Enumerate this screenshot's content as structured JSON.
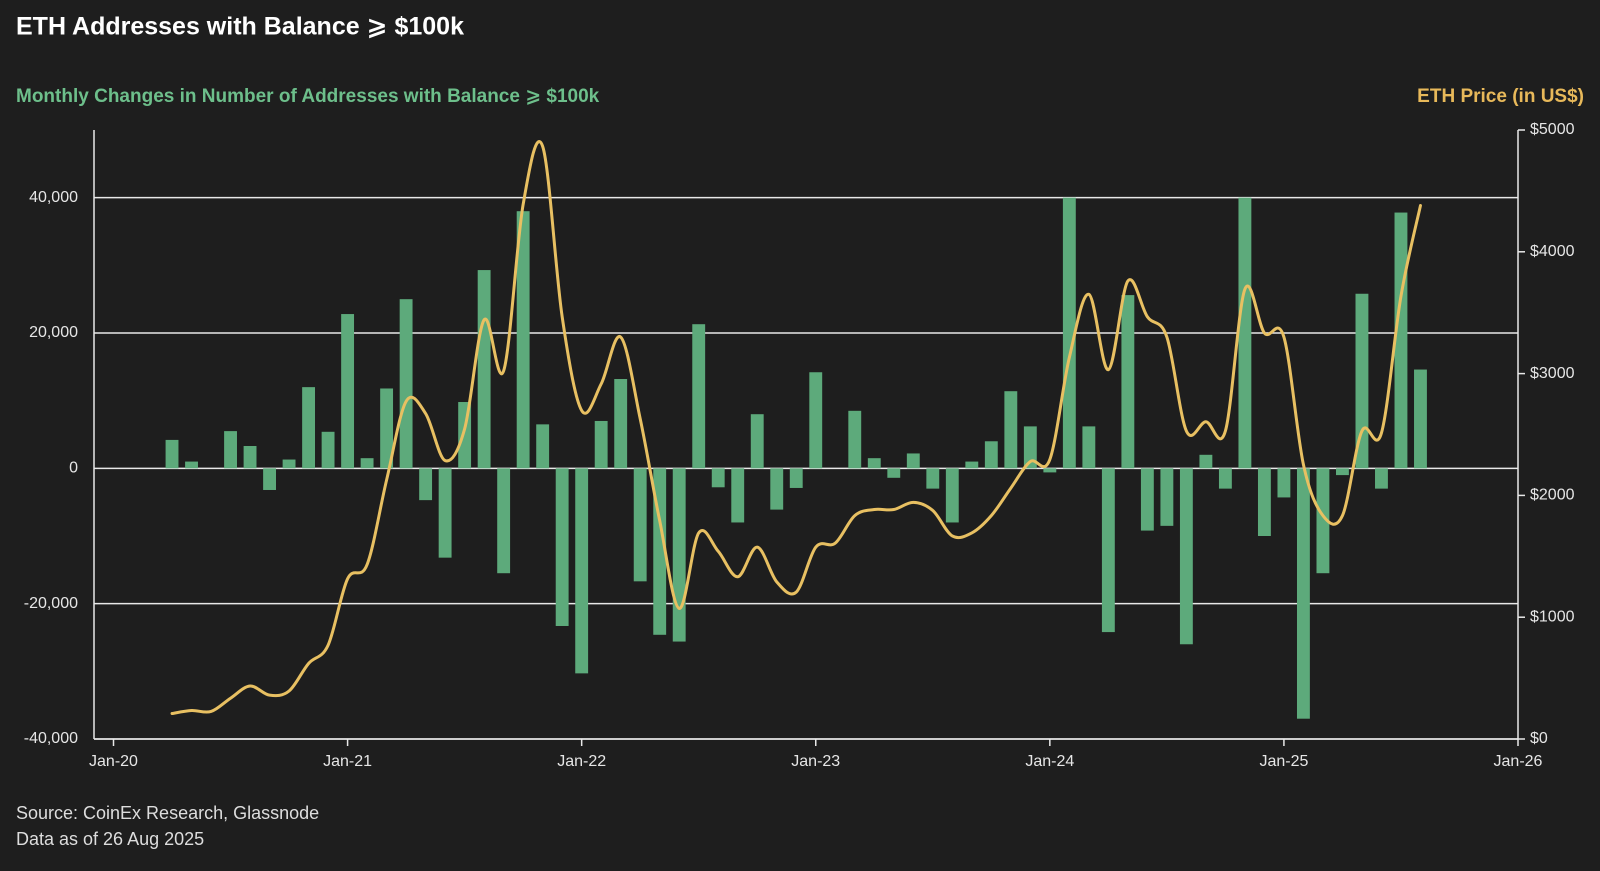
{
  "chart_data": {
    "type": "combo",
    "title": "ETH Addresses with Balance ⩾ $100k",
    "y_label": "Monthly Changes in Number of Addresses with Balance ⩾ $100k",
    "y2_label": "ETH Price (in US$)",
    "source": "Source: CoinEx Research, Glassnode",
    "note": "Data as of 26 Aug 2025",
    "x": [
      "2020-04",
      "2020-05",
      "2020-06",
      "2020-07",
      "2020-08",
      "2020-09",
      "2020-10",
      "2020-11",
      "2020-12",
      "2021-01",
      "2021-02",
      "2021-03",
      "2021-04",
      "2021-05",
      "2021-06",
      "2021-07",
      "2021-08",
      "2021-09",
      "2021-10",
      "2021-11",
      "2021-12",
      "2022-01",
      "2022-02",
      "2022-03",
      "2022-04",
      "2022-05",
      "2022-06",
      "2022-07",
      "2022-08",
      "2022-09",
      "2022-10",
      "2022-11",
      "2022-12",
      "2023-01",
      "2023-02",
      "2023-03",
      "2023-04",
      "2023-05",
      "2023-06",
      "2023-07",
      "2023-08",
      "2023-09",
      "2023-10",
      "2023-11",
      "2023-12",
      "2024-01",
      "2024-02",
      "2024-03",
      "2024-04",
      "2024-05",
      "2024-06",
      "2024-07",
      "2024-08",
      "2024-09",
      "2024-10",
      "2024-11",
      "2024-12",
      "2025-01",
      "2025-02",
      "2025-03",
      "2025-04",
      "2025-05",
      "2025-06",
      "2025-07",
      "2025-08"
    ],
    "series": [
      {
        "type": "bar",
        "axis": "y",
        "color": "#5daa7b",
        "values": [
          4200,
          1000,
          0,
          5500,
          3300,
          -3200,
          1300,
          12000,
          5400,
          22800,
          1500,
          11800,
          25000,
          -4700,
          -13200,
          9800,
          29300,
          -15500,
          38000,
          6500,
          -23300,
          -30300,
          7000,
          13200,
          -16700,
          -24600,
          -25600,
          21300,
          -2800,
          -8000,
          8000,
          -6100,
          -2900,
          14200,
          0,
          8500,
          1500,
          -1400,
          2200,
          -3000,
          -8000,
          1000,
          4000,
          11400,
          6200,
          -600,
          40000,
          6200,
          -24200,
          25600,
          -9200,
          -8500,
          -26000,
          2000,
          -3000,
          40000,
          -10000,
          -4300,
          -37000,
          -15500,
          -1000,
          25800,
          -3000,
          37800,
          14600
        ]
      },
      {
        "type": "line",
        "axis": "y2",
        "color": "#e8c062",
        "values": [
          209,
          234,
          226,
          335,
          435,
          360,
          394,
          620,
          770,
          1315,
          1432,
          2127,
          2772,
          2672,
          2286,
          2546,
          3442,
          3023,
          4389,
          4866,
          3467,
          2697,
          2915,
          3300,
          2630,
          1792,
          1072,
          1692,
          1541,
          1332,
          1575,
          1290,
          1206,
          1575,
          1608,
          1834,
          1884,
          1884,
          1943,
          1876,
          1667,
          1692,
          1834,
          2060,
          2278,
          2295,
          3132,
          3651,
          3032,
          3760,
          3467,
          3300,
          2529,
          2605,
          2529,
          3693,
          3333,
          3300,
          2253,
          1834,
          1834,
          2529,
          2513,
          3635,
          4380
        ]
      }
    ],
    "xlim": [
      "2019-12",
      "2026-01"
    ],
    "xticks": [
      {
        "value": "2020-01",
        "label": "Jan-20"
      },
      {
        "value": "2021-01",
        "label": "Jan-21"
      },
      {
        "value": "2022-01",
        "label": "Jan-22"
      },
      {
        "value": "2023-01",
        "label": "Jan-23"
      },
      {
        "value": "2024-01",
        "label": "Jan-24"
      },
      {
        "value": "2025-01",
        "label": "Jan-25"
      },
      {
        "value": "2026-01",
        "label": "Jan-26"
      }
    ],
    "ylim": [
      -40000,
      50000
    ],
    "yticks": [
      {
        "value": -40000,
        "label": "-40,000"
      },
      {
        "value": -20000,
        "label": "-20,000"
      },
      0,
      {
        "value": 20000,
        "label": "20,000"
      },
      {
        "value": 40000,
        "label": "40,000"
      }
    ],
    "y2lim": [
      0,
      5000
    ],
    "y2ticks": [
      {
        "value": 0,
        "label": "$0"
      },
      {
        "value": 1000,
        "label": "$1000"
      },
      {
        "value": 2000,
        "label": "$2000"
      },
      {
        "value": 3000,
        "label": "$3000"
      },
      {
        "value": 4000,
        "label": "$4000"
      },
      {
        "value": 5000,
        "label": "$5000"
      }
    ],
    "grid": true
  }
}
